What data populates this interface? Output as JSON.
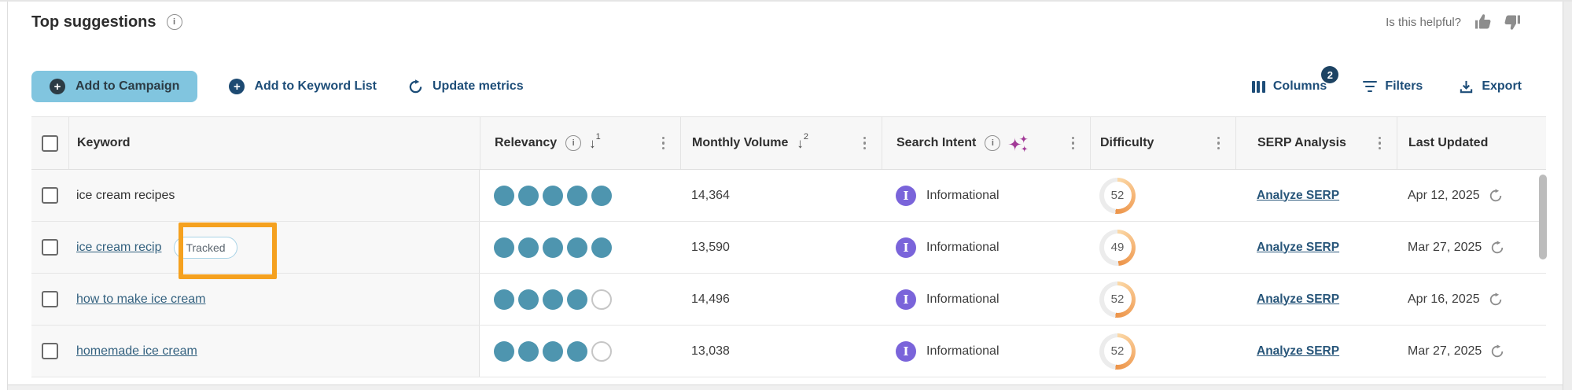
{
  "panel": {
    "title": "Top suggestions",
    "helpful_prompt": "Is this helpful?"
  },
  "toolbar": {
    "add_to_campaign": "Add to Campaign",
    "add_to_keyword_list": "Add to Keyword List",
    "update_metrics": "Update metrics",
    "columns": "Columns",
    "columns_badge": "2",
    "filters": "Filters",
    "export": "Export"
  },
  "table": {
    "headers": {
      "keyword": "Keyword",
      "relevancy": "Relevancy",
      "monthly_volume": "Monthly Volume",
      "search_intent": "Search Intent",
      "difficulty": "Difficulty",
      "serp_analysis": "SERP Analysis",
      "last_updated": "Last Updated"
    },
    "sort": {
      "relevancy_rank": "1",
      "volume_rank": "2"
    },
    "intent_initial": "I",
    "rows": [
      {
        "keyword": "ice cream recipes",
        "tracked": "",
        "relevancy": 5,
        "monthly_volume": "14,364",
        "search_intent": "Informational",
        "difficulty": 52,
        "serp_link": "Analyze SERP",
        "last_updated": "Apr 12, 2025"
      },
      {
        "keyword": "ice cream recip",
        "tracked": "Tracked",
        "relevancy": 5,
        "monthly_volume": "13,590",
        "search_intent": "Informational",
        "difficulty": 49,
        "serp_link": "Analyze SERP",
        "last_updated": "Mar 27, 2025"
      },
      {
        "keyword": "how to make ice cream",
        "tracked": "",
        "relevancy": 4,
        "monthly_volume": "14,496",
        "search_intent": "Informational",
        "difficulty": 52,
        "serp_link": "Analyze SERP",
        "last_updated": "Apr 16, 2025"
      },
      {
        "keyword": "homemade ice cream",
        "tracked": "",
        "relevancy": 4,
        "monthly_volume": "13,038",
        "search_intent": "Informational",
        "difficulty": 52,
        "serp_link": "Analyze SERP",
        "last_updated": "Mar 27, 2025"
      }
    ]
  },
  "colors": {
    "accent_teal": "#4e95af",
    "navy": "#1d4d78",
    "intent_purple": "#7a64da",
    "difficulty_orange": "#ec9348",
    "highlight_orange": "#f5a11f",
    "button_blue": "#81c5df",
    "tracked_border": "#a9d3e6"
  }
}
